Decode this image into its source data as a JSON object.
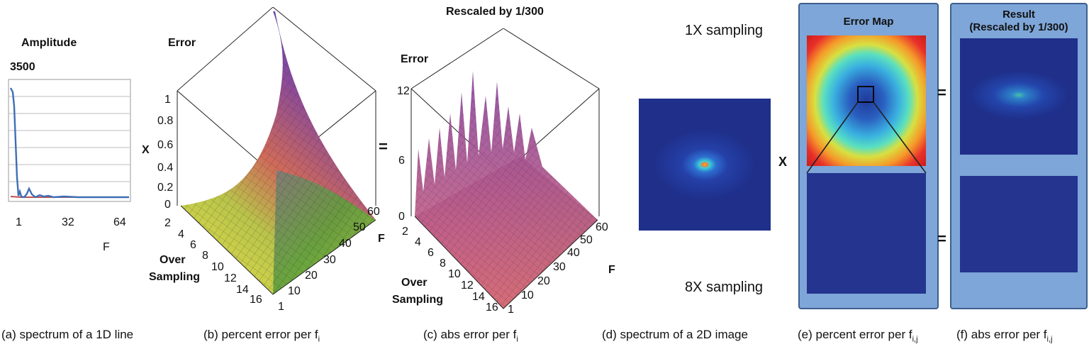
{
  "panel_a": {
    "title": "Amplitude",
    "ymax": "3500",
    "xticks": [
      "1",
      "32",
      "64"
    ],
    "xlabel": "F",
    "caption": "(a) spectrum of a 1D line"
  },
  "panel_b": {
    "zlabel": "Error",
    "xlabel_small": "X",
    "zticks": [
      "1",
      "0.8",
      "0.6",
      "0.4",
      "0.2",
      "0"
    ],
    "os_ticks": [
      "2",
      "4",
      "6",
      "8",
      "10",
      "12",
      "14",
      "16"
    ],
    "os_label_1": "Over",
    "os_label_2": "Sampling",
    "f_ticks": [
      "1",
      "10",
      "20",
      "30",
      "40",
      "50",
      "60"
    ],
    "f_label": "F",
    "caption": "(b) percent error per f",
    "caption_sub": "i"
  },
  "operators": {
    "equals": "=",
    "times": "X"
  },
  "panel_c": {
    "title": "Rescaled by 1/300",
    "zlabel": "Error",
    "zticks": [
      "12",
      "6",
      "0"
    ],
    "os_ticks": [
      "2",
      "4",
      "6",
      "8",
      "10",
      "12",
      "14",
      "16"
    ],
    "os_label_1": "Over",
    "os_label_2": "Sampling",
    "f_ticks": [
      "1",
      "10",
      "20",
      "30",
      "40",
      "50",
      "60"
    ],
    "f_label": "F",
    "caption": "(c) abs error per f",
    "caption_sub": "i"
  },
  "panel_d": {
    "top_label": "1X sampling",
    "bottom_label": "8X sampling",
    "caption": "(d) spectrum of a 2D image"
  },
  "panel_e": {
    "title": "Error Map",
    "caption": "(e) percent error per f",
    "caption_sub": "i,j"
  },
  "panel_f": {
    "title_1": "Result",
    "title_2": "(Rescaled by 1/300)",
    "caption": "(f) abs error per f",
    "caption_sub": "i,j"
  },
  "colors": {
    "panel_bg": "#7ea6d8",
    "panel_border": "#3d5f8e",
    "dark_blue": "#1f2f8a",
    "spectrum_blue": "#3f6fb5",
    "spectrum_red": "#c0504d"
  }
}
